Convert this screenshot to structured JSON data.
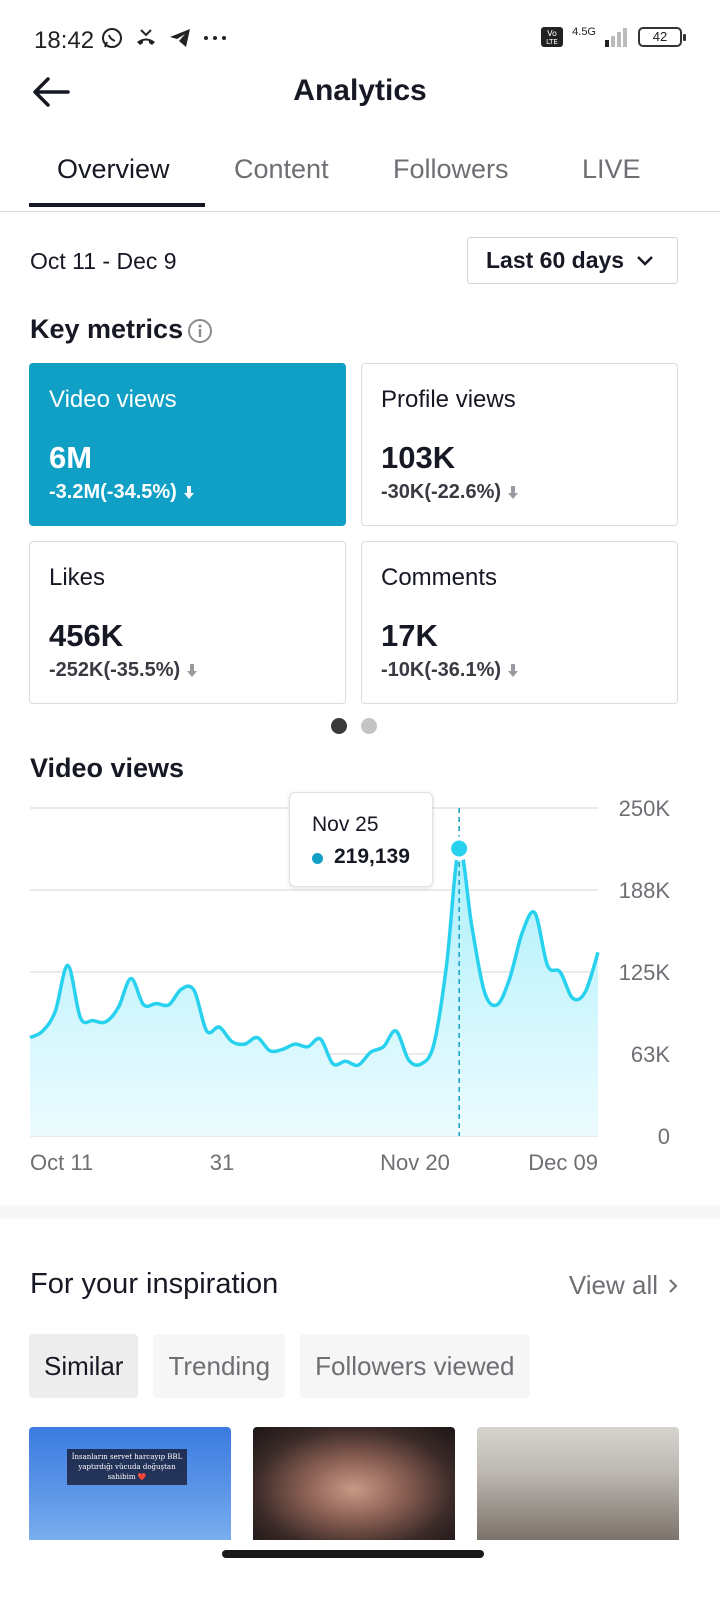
{
  "status_bar": {
    "time": "18:42",
    "network": "4.5G",
    "battery": "42"
  },
  "header": {
    "title": "Analytics"
  },
  "tabs": [
    {
      "label": "Overview",
      "active": true
    },
    {
      "label": "Content",
      "active": false
    },
    {
      "label": "Followers",
      "active": false
    },
    {
      "label": "LIVE",
      "active": false
    }
  ],
  "period": {
    "date_range": "Oct 11 - Dec 9",
    "selector_label": "Last 60 days"
  },
  "key_metrics": {
    "title": "Key metrics",
    "cards": [
      {
        "label": "Video views",
        "value": "6M",
        "change": "-3.2M(-34.5%)",
        "selected": true
      },
      {
        "label": "Profile views",
        "value": "103K",
        "change": "-30K(-22.6%)",
        "selected": false
      },
      {
        "label": "Likes",
        "value": "456K",
        "change": "-252K(-35.5%)",
        "selected": false
      },
      {
        "label": "Comments",
        "value": "17K",
        "change": "-10K(-36.1%)",
        "selected": false
      }
    ],
    "page_indicator": {
      "pages": 2,
      "current": 1
    }
  },
  "chart_section": {
    "title": "Video views"
  },
  "chart_data": {
    "type": "area",
    "title": "Video views",
    "y_ticks": [
      "250K",
      "188K",
      "125K",
      "63K",
      "0"
    ],
    "x_ticks": [
      "Oct 11",
      "31",
      "Nov 20",
      "Dec 09"
    ],
    "ylim": [
      0,
      250000
    ],
    "series": [
      {
        "values": [
          75000,
          80000,
          95000,
          130000,
          90000,
          88000,
          87000,
          98000,
          120000,
          100000,
          101000,
          100000,
          112000,
          111000,
          80000,
          83000,
          72000,
          70000,
          75000,
          65000,
          66000,
          70000,
          68000,
          74000,
          55000,
          57000,
          54000,
          64000,
          68000,
          80000,
          58000,
          55000,
          70000,
          130000,
          219139,
          160000,
          110000,
          100000,
          120000,
          155000,
          170000,
          130000,
          125000,
          105000,
          110000,
          140000
        ]
      }
    ],
    "color": "#28d2ef",
    "fill": "#c4f3fb",
    "tooltip": {
      "date": "Nov 25",
      "value": "219,139"
    },
    "grid": true
  },
  "inspiration": {
    "title": "For your inspiration",
    "view_all": "View all",
    "chips": [
      {
        "label": "Similar",
        "active": true
      },
      {
        "label": "Trending",
        "active": false
      },
      {
        "label": "Followers viewed",
        "active": false
      }
    ],
    "thumb1_text": "İnsanların servet harcayıp BBL yaptırdığı vücuda doğuştan sahibim ❤️"
  },
  "colors": {
    "accent": "#11a0c5",
    "line": "#28d2ef"
  }
}
